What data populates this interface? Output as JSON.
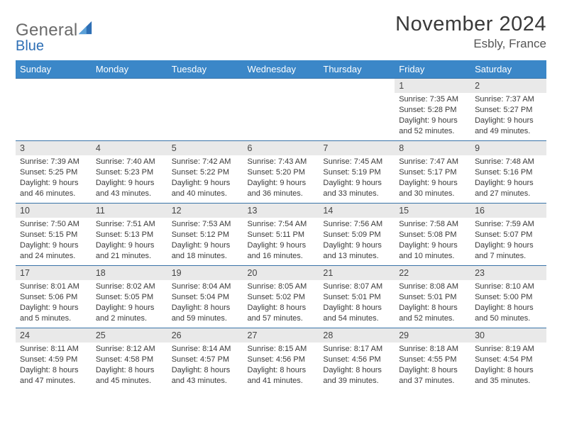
{
  "brand": {
    "general": "General",
    "blue": "Blue",
    "icon_color": "#2e6fb5"
  },
  "title": {
    "month": "November 2024",
    "location": "Esbly, France"
  },
  "colors": {
    "header_bg": "#3b87c8",
    "row_border": "#3973a8",
    "daynum_bg": "#e9e9e9"
  },
  "dayNames": [
    "Sunday",
    "Monday",
    "Tuesday",
    "Wednesday",
    "Thursday",
    "Friday",
    "Saturday"
  ],
  "weeks": [
    [
      null,
      null,
      null,
      null,
      null,
      {
        "n": "1",
        "sunrise": "Sunrise: 7:35 AM",
        "sunset": "Sunset: 5:28 PM",
        "day": "Daylight: 9 hours and 52 minutes."
      },
      {
        "n": "2",
        "sunrise": "Sunrise: 7:37 AM",
        "sunset": "Sunset: 5:27 PM",
        "day": "Daylight: 9 hours and 49 minutes."
      }
    ],
    [
      {
        "n": "3",
        "sunrise": "Sunrise: 7:39 AM",
        "sunset": "Sunset: 5:25 PM",
        "day": "Daylight: 9 hours and 46 minutes."
      },
      {
        "n": "4",
        "sunrise": "Sunrise: 7:40 AM",
        "sunset": "Sunset: 5:23 PM",
        "day": "Daylight: 9 hours and 43 minutes."
      },
      {
        "n": "5",
        "sunrise": "Sunrise: 7:42 AM",
        "sunset": "Sunset: 5:22 PM",
        "day": "Daylight: 9 hours and 40 minutes."
      },
      {
        "n": "6",
        "sunrise": "Sunrise: 7:43 AM",
        "sunset": "Sunset: 5:20 PM",
        "day": "Daylight: 9 hours and 36 minutes."
      },
      {
        "n": "7",
        "sunrise": "Sunrise: 7:45 AM",
        "sunset": "Sunset: 5:19 PM",
        "day": "Daylight: 9 hours and 33 minutes."
      },
      {
        "n": "8",
        "sunrise": "Sunrise: 7:47 AM",
        "sunset": "Sunset: 5:17 PM",
        "day": "Daylight: 9 hours and 30 minutes."
      },
      {
        "n": "9",
        "sunrise": "Sunrise: 7:48 AM",
        "sunset": "Sunset: 5:16 PM",
        "day": "Daylight: 9 hours and 27 minutes."
      }
    ],
    [
      {
        "n": "10",
        "sunrise": "Sunrise: 7:50 AM",
        "sunset": "Sunset: 5:15 PM",
        "day": "Daylight: 9 hours and 24 minutes."
      },
      {
        "n": "11",
        "sunrise": "Sunrise: 7:51 AM",
        "sunset": "Sunset: 5:13 PM",
        "day": "Daylight: 9 hours and 21 minutes."
      },
      {
        "n": "12",
        "sunrise": "Sunrise: 7:53 AM",
        "sunset": "Sunset: 5:12 PM",
        "day": "Daylight: 9 hours and 18 minutes."
      },
      {
        "n": "13",
        "sunrise": "Sunrise: 7:54 AM",
        "sunset": "Sunset: 5:11 PM",
        "day": "Daylight: 9 hours and 16 minutes."
      },
      {
        "n": "14",
        "sunrise": "Sunrise: 7:56 AM",
        "sunset": "Sunset: 5:09 PM",
        "day": "Daylight: 9 hours and 13 minutes."
      },
      {
        "n": "15",
        "sunrise": "Sunrise: 7:58 AM",
        "sunset": "Sunset: 5:08 PM",
        "day": "Daylight: 9 hours and 10 minutes."
      },
      {
        "n": "16",
        "sunrise": "Sunrise: 7:59 AM",
        "sunset": "Sunset: 5:07 PM",
        "day": "Daylight: 9 hours and 7 minutes."
      }
    ],
    [
      {
        "n": "17",
        "sunrise": "Sunrise: 8:01 AM",
        "sunset": "Sunset: 5:06 PM",
        "day": "Daylight: 9 hours and 5 minutes."
      },
      {
        "n": "18",
        "sunrise": "Sunrise: 8:02 AM",
        "sunset": "Sunset: 5:05 PM",
        "day": "Daylight: 9 hours and 2 minutes."
      },
      {
        "n": "19",
        "sunrise": "Sunrise: 8:04 AM",
        "sunset": "Sunset: 5:04 PM",
        "day": "Daylight: 8 hours and 59 minutes."
      },
      {
        "n": "20",
        "sunrise": "Sunrise: 8:05 AM",
        "sunset": "Sunset: 5:02 PM",
        "day": "Daylight: 8 hours and 57 minutes."
      },
      {
        "n": "21",
        "sunrise": "Sunrise: 8:07 AM",
        "sunset": "Sunset: 5:01 PM",
        "day": "Daylight: 8 hours and 54 minutes."
      },
      {
        "n": "22",
        "sunrise": "Sunrise: 8:08 AM",
        "sunset": "Sunset: 5:01 PM",
        "day": "Daylight: 8 hours and 52 minutes."
      },
      {
        "n": "23",
        "sunrise": "Sunrise: 8:10 AM",
        "sunset": "Sunset: 5:00 PM",
        "day": "Daylight: 8 hours and 50 minutes."
      }
    ],
    [
      {
        "n": "24",
        "sunrise": "Sunrise: 8:11 AM",
        "sunset": "Sunset: 4:59 PM",
        "day": "Daylight: 8 hours and 47 minutes."
      },
      {
        "n": "25",
        "sunrise": "Sunrise: 8:12 AM",
        "sunset": "Sunset: 4:58 PM",
        "day": "Daylight: 8 hours and 45 minutes."
      },
      {
        "n": "26",
        "sunrise": "Sunrise: 8:14 AM",
        "sunset": "Sunset: 4:57 PM",
        "day": "Daylight: 8 hours and 43 minutes."
      },
      {
        "n": "27",
        "sunrise": "Sunrise: 8:15 AM",
        "sunset": "Sunset: 4:56 PM",
        "day": "Daylight: 8 hours and 41 minutes."
      },
      {
        "n": "28",
        "sunrise": "Sunrise: 8:17 AM",
        "sunset": "Sunset: 4:56 PM",
        "day": "Daylight: 8 hours and 39 minutes."
      },
      {
        "n": "29",
        "sunrise": "Sunrise: 8:18 AM",
        "sunset": "Sunset: 4:55 PM",
        "day": "Daylight: 8 hours and 37 minutes."
      },
      {
        "n": "30",
        "sunrise": "Sunrise: 8:19 AM",
        "sunset": "Sunset: 4:54 PM",
        "day": "Daylight: 8 hours and 35 minutes."
      }
    ]
  ]
}
